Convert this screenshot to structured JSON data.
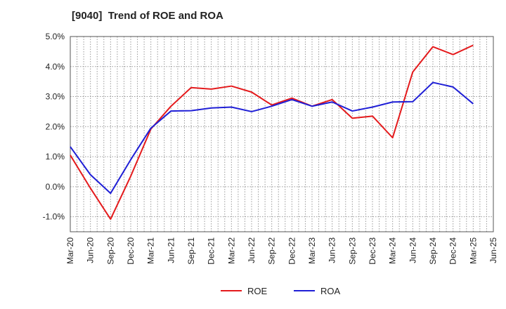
{
  "chart_data": {
    "type": "line",
    "title": "[9040]  Trend of ROE and ROA",
    "xlabel": "",
    "ylabel": "",
    "categories": [
      "Mar-20",
      "Jun-20",
      "Sep-20",
      "Dec-20",
      "Mar-21",
      "Jun-21",
      "Sep-21",
      "Dec-21",
      "Mar-22",
      "Jun-22",
      "Sep-22",
      "Dec-22",
      "Mar-23",
      "Jun-23",
      "Sep-23",
      "Dec-23",
      "Mar-24",
      "Jun-24",
      "Sep-24",
      "Dec-24",
      "Mar-25",
      "Jun-25"
    ],
    "y_tick_labels": [
      "5.0%",
      "4.0%",
      "3.0%",
      "2.0%",
      "1.0%",
      "0.0%",
      "-1.0%"
    ],
    "y_ticks": [
      5.0,
      4.0,
      3.0,
      2.0,
      1.0,
      0.0,
      -1.0
    ],
    "ylim": [
      -1.5,
      5.0
    ],
    "grid": true,
    "legend_position": "bottom",
    "series": [
      {
        "name": "ROE",
        "color": "#e41a1c",
        "values": [
          1.05,
          -0.05,
          -1.08,
          0.35,
          1.92,
          2.68,
          3.3,
          3.25,
          3.35,
          3.15,
          2.72,
          2.95,
          2.68,
          2.9,
          2.28,
          2.35,
          1.63,
          3.82,
          4.66,
          4.4,
          4.71,
          null
        ]
      },
      {
        "name": "ROA",
        "color": "#1f1fd6",
        "values": [
          1.33,
          0.4,
          -0.22,
          0.9,
          1.95,
          2.52,
          2.53,
          2.62,
          2.65,
          2.5,
          2.68,
          2.9,
          2.68,
          2.82,
          2.52,
          2.65,
          2.82,
          2.83,
          3.47,
          3.32,
          2.76,
          null
        ]
      }
    ]
  }
}
